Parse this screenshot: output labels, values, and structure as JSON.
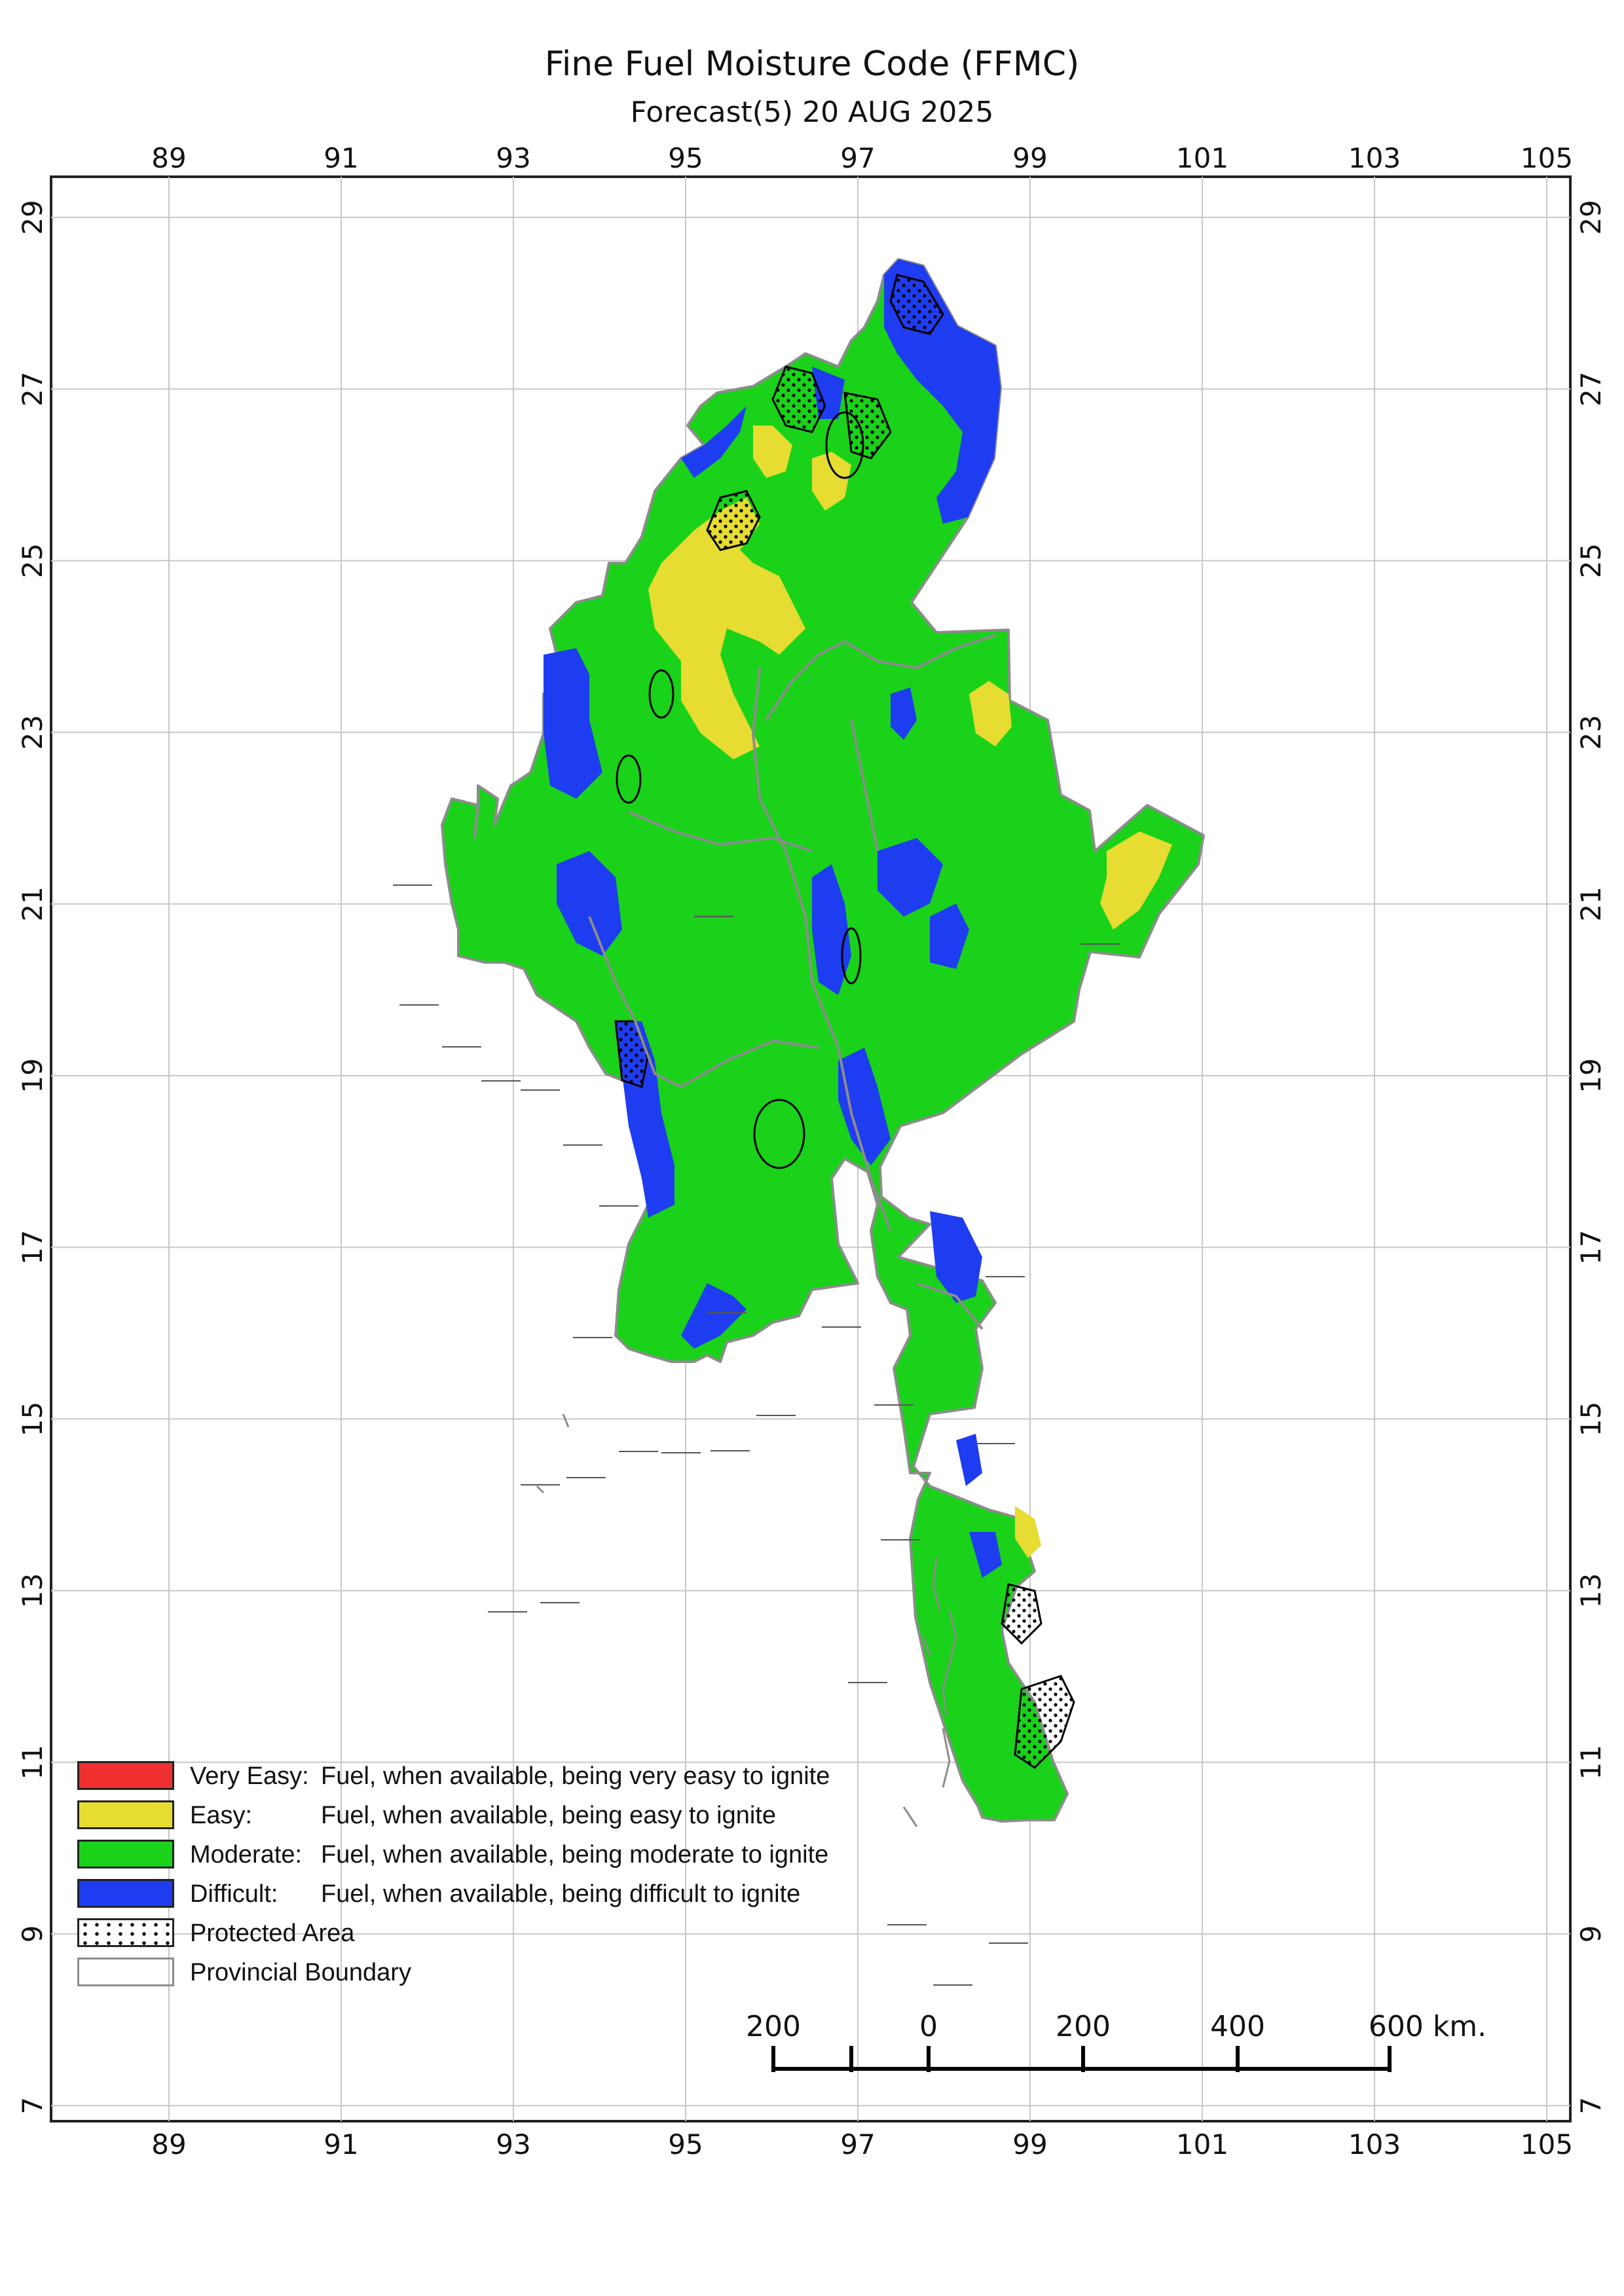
{
  "title": "Fine Fuel Moisture Code (FFMC)",
  "subtitle": "Forecast(5) 20 AUG 2025",
  "axes": {
    "longitude_ticks": [
      "89",
      "91",
      "93",
      "95",
      "97",
      "99",
      "101",
      "103",
      "105"
    ],
    "latitude_ticks": [
      "29",
      "27",
      "25",
      "23",
      "21",
      "19",
      "17",
      "15",
      "13",
      "11",
      "9",
      "7"
    ],
    "longitude_range": [
      87.8,
      105.6
    ],
    "latitude_range": [
      6.7,
      29.5
    ],
    "grid": true
  },
  "colors": {
    "very_easy": "#f03030",
    "easy": "#e6dc32",
    "moderate": "#19d219",
    "difficult": "#1e3cf0",
    "boundary": "#8c8c8c",
    "protected_outline": "#000000"
  },
  "legend": {
    "items": [
      {
        "class": "Very Easy:",
        "description": "Fuel, when available, being very easy to ignite",
        "color": "#f03030"
      },
      {
        "class": "Easy:",
        "description": "Fuel, when available, being easy to ignite",
        "color": "#e6dc32"
      },
      {
        "class": "Moderate:",
        "description": "Fuel, when available, being moderate to ignite",
        "color": "#19d219"
      },
      {
        "class": "Difficult:",
        "description": "Fuel, when available, being difficult to ignite",
        "color": "#1e3cf0"
      }
    ],
    "protected_area": "Protected Area",
    "provincial_boundary": "Provincial Boundary"
  },
  "scale_bar": {
    "labels": [
      "200",
      "0",
      "200",
      "400",
      "600 km."
    ]
  }
}
